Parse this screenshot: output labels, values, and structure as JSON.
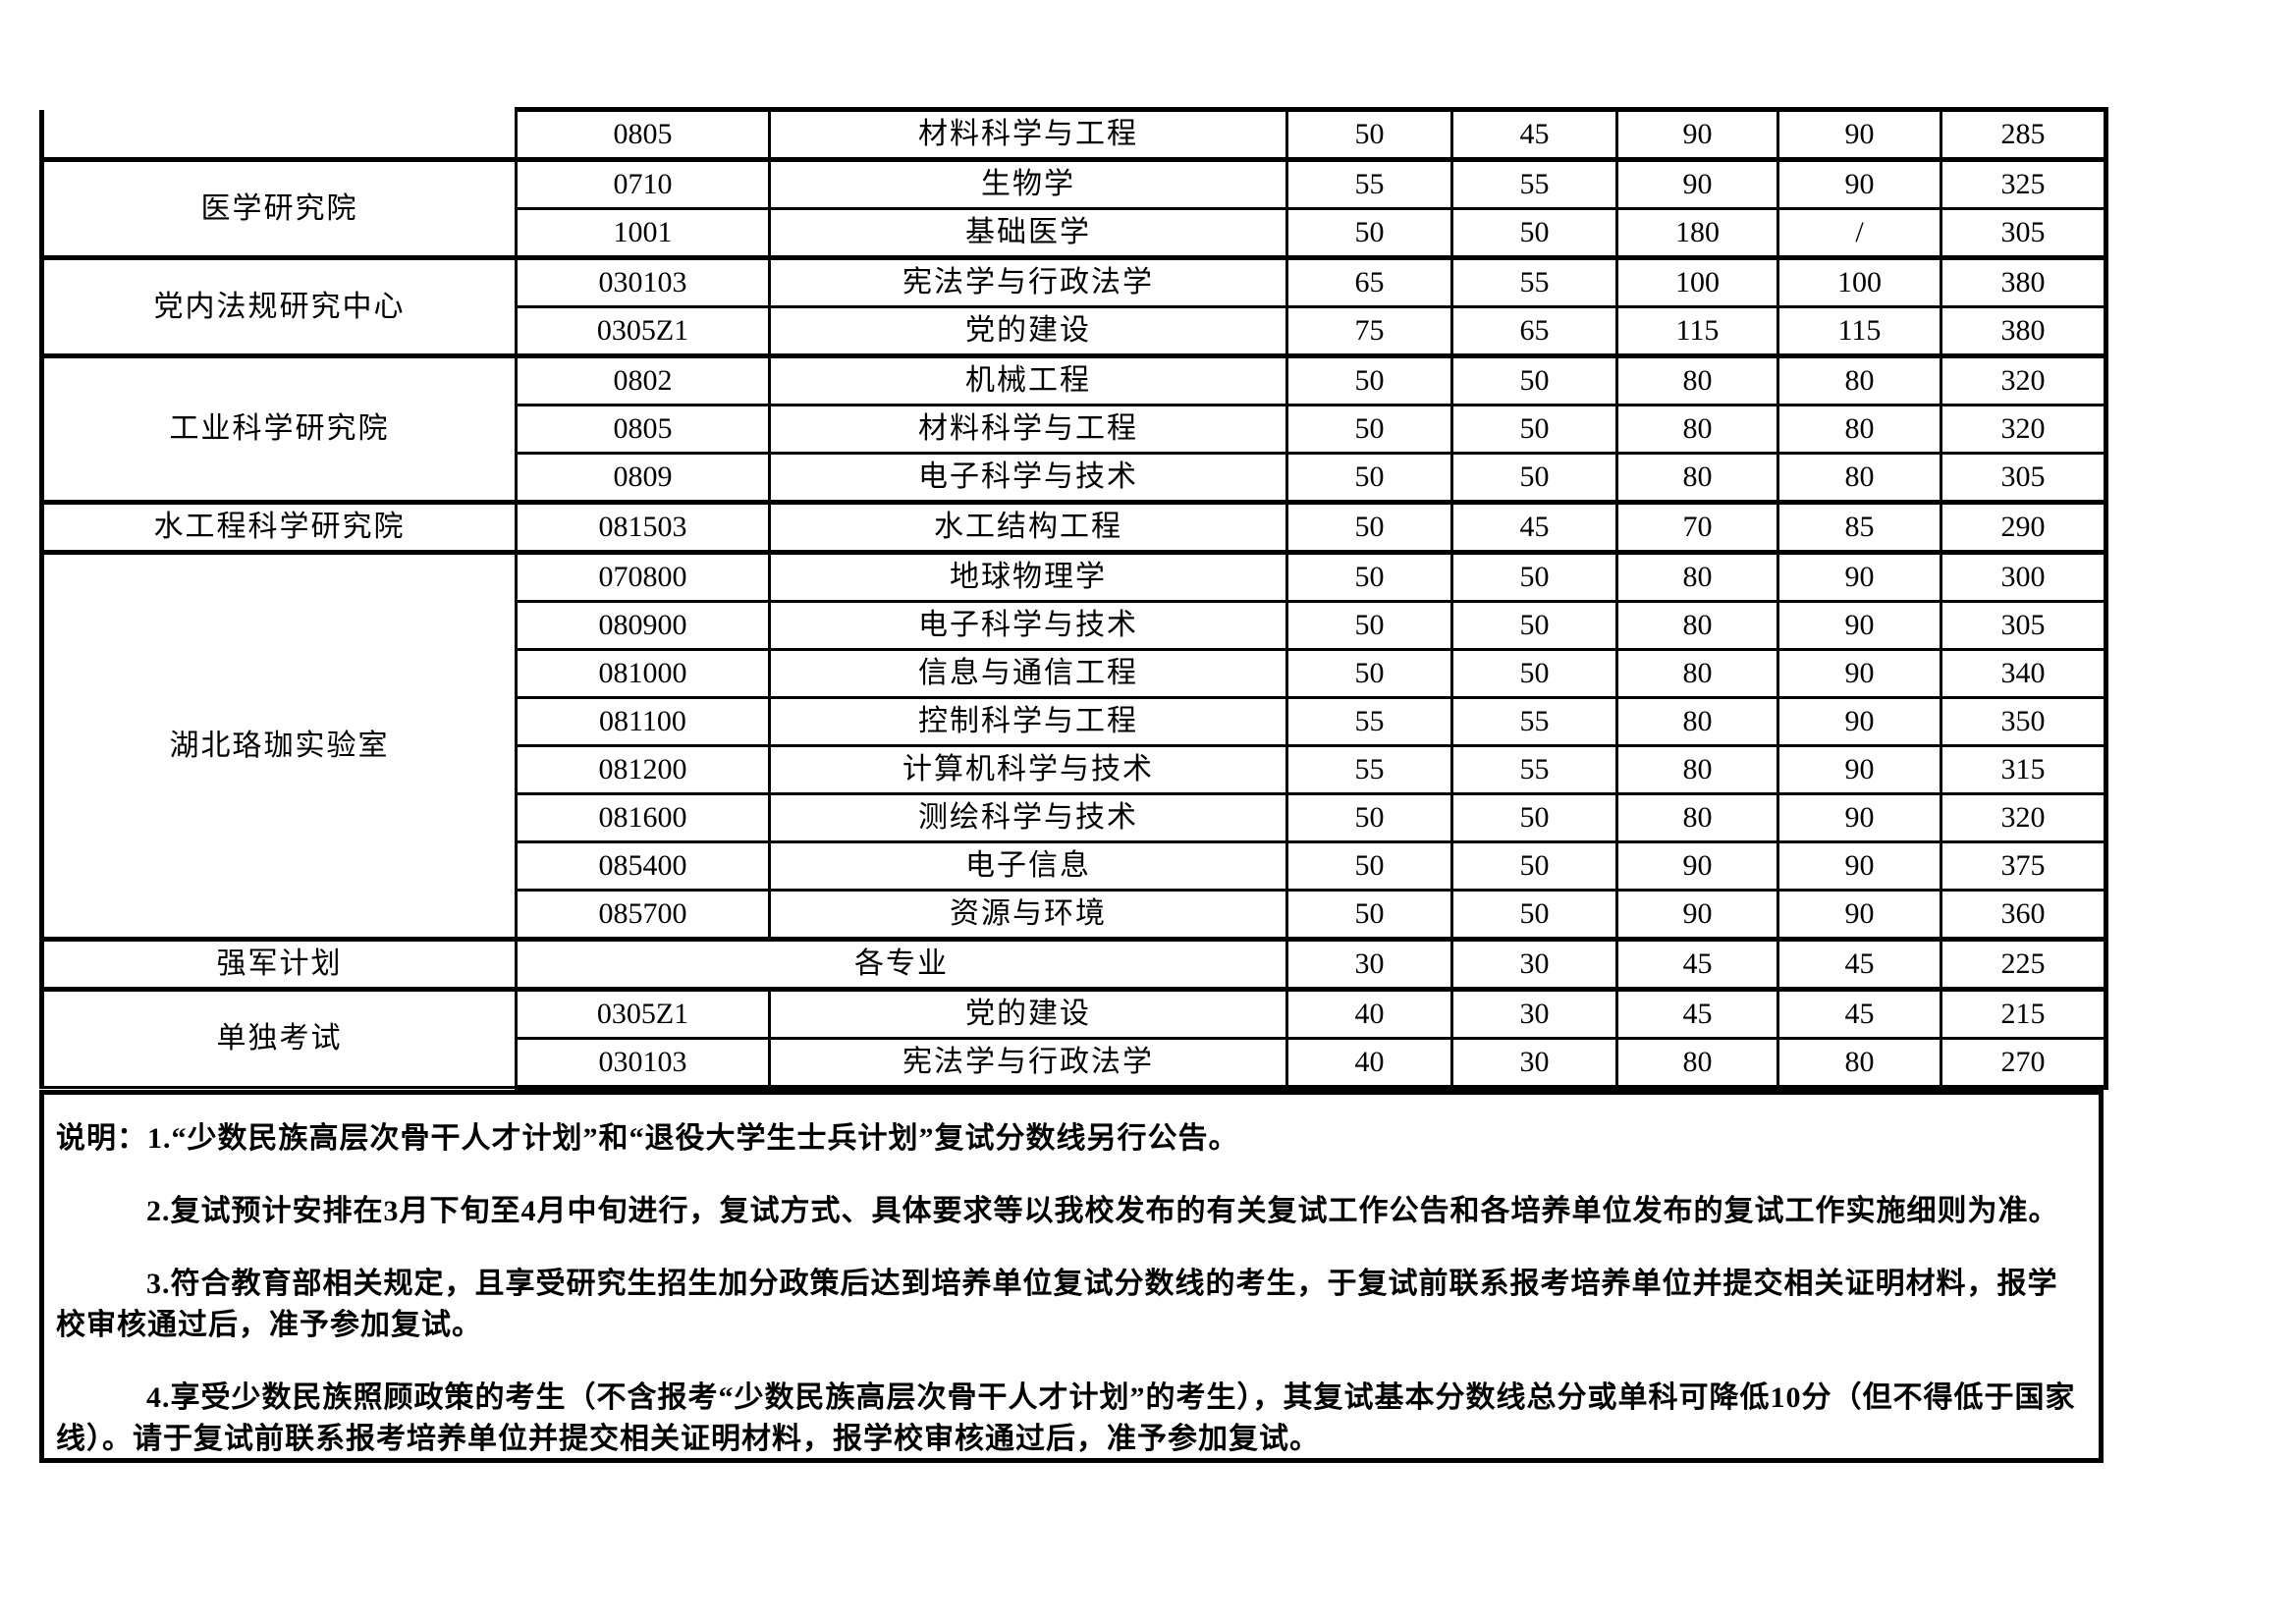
{
  "colors": {
    "background": "#ffffff",
    "border": "#000000",
    "text": "#000000"
  },
  "score_table": {
    "groups": [
      {
        "unit": "",
        "continued_from_previous_page": true,
        "rows": [
          {
            "code": "0805",
            "major": "材料科学与工程",
            "scores": [
              "50",
              "45",
              "90",
              "90",
              "285"
            ]
          }
        ]
      },
      {
        "unit": "医学研究院",
        "rows": [
          {
            "code": "0710",
            "major": "生物学",
            "scores": [
              "55",
              "55",
              "90",
              "90",
              "325"
            ]
          },
          {
            "code": "1001",
            "major": "基础医学",
            "scores": [
              "50",
              "50",
              "180",
              "/",
              "305"
            ]
          }
        ]
      },
      {
        "unit": "党内法规研究中心",
        "rows": [
          {
            "code": "030103",
            "major": "宪法学与行政法学",
            "scores": [
              "65",
              "55",
              "100",
              "100",
              "380"
            ]
          },
          {
            "code": "0305Z1",
            "major": "党的建设",
            "scores": [
              "75",
              "65",
              "115",
              "115",
              "380"
            ]
          }
        ]
      },
      {
        "unit": "工业科学研究院",
        "rows": [
          {
            "code": "0802",
            "major": "机械工程",
            "scores": [
              "50",
              "50",
              "80",
              "80",
              "320"
            ]
          },
          {
            "code": "0805",
            "major": "材料科学与工程",
            "scores": [
              "50",
              "50",
              "80",
              "80",
              "320"
            ]
          },
          {
            "code": "0809",
            "major": "电子科学与技术",
            "scores": [
              "50",
              "50",
              "80",
              "80",
              "305"
            ]
          }
        ]
      },
      {
        "unit": "水工程科学研究院",
        "rows": [
          {
            "code": "081503",
            "major": "水工结构工程",
            "scores": [
              "50",
              "45",
              "70",
              "85",
              "290"
            ]
          }
        ]
      },
      {
        "unit": "湖北珞珈实验室",
        "rows": [
          {
            "code": "070800",
            "major": "地球物理学",
            "scores": [
              "50",
              "50",
              "80",
              "90",
              "300"
            ]
          },
          {
            "code": "080900",
            "major": "电子科学与技术",
            "scores": [
              "50",
              "50",
              "80",
              "90",
              "305"
            ]
          },
          {
            "code": "081000",
            "major": "信息与通信工程",
            "scores": [
              "50",
              "50",
              "80",
              "90",
              "340"
            ]
          },
          {
            "code": "081100",
            "major": "控制科学与工程",
            "scores": [
              "55",
              "55",
              "80",
              "90",
              "350"
            ]
          },
          {
            "code": "081200",
            "major": "计算机科学与技术",
            "scores": [
              "55",
              "55",
              "80",
              "90",
              "315"
            ]
          },
          {
            "code": "081600",
            "major": "测绘科学与技术",
            "scores": [
              "50",
              "50",
              "80",
              "90",
              "320"
            ]
          },
          {
            "code": "085400",
            "major": "电子信息",
            "scores": [
              "50",
              "50",
              "90",
              "90",
              "375"
            ]
          },
          {
            "code": "085700",
            "major": "资源与环境",
            "scores": [
              "50",
              "50",
              "90",
              "90",
              "360"
            ]
          }
        ]
      },
      {
        "unit": "强军计划",
        "rows": [
          {
            "merged_major": "各专业",
            "scores": [
              "30",
              "30",
              "45",
              "45",
              "225"
            ]
          }
        ]
      },
      {
        "unit": "单独考试",
        "rows": [
          {
            "code": "0305Z1",
            "major": "党的建设",
            "scores": [
              "40",
              "30",
              "45",
              "45",
              "215"
            ]
          },
          {
            "code": "030103",
            "major": "宪法学与行政法学",
            "scores": [
              "40",
              "30",
              "80",
              "80",
              "270"
            ]
          }
        ]
      }
    ]
  },
  "notes": {
    "paragraphs": [
      {
        "text": "说明：1.“少数民族高层次骨干人才计划”和“退役大学生士兵计划”复试分数线另行公告。",
        "indent": false
      },
      {
        "text": "2.复试预计安排在3月下旬至4月中旬进行，复试方式、具体要求等以我校发布的有关复试工作公告和各培养单位发布的复试工作实施细则为准。",
        "indent": true
      },
      {
        "text": "3.符合教育部相关规定，且享受研究生招生加分政策后达到培养单位复试分数线的考生，于复试前联系报考培养单位并提交相关证明材料，报学校审核通过后，准予参加复试。",
        "indent": true
      },
      {
        "text": "4.享受少数民族照顾政策的考生（不含报考“少数民族高层次骨干人才计划”的考生），其复试基本分数线总分或单科可降低10分（但不得低于国家线）。请于复试前联系报考培养单位并提交相关证明材料，报学校审核通过后，准予参加复试。",
        "indent": true
      }
    ]
  }
}
